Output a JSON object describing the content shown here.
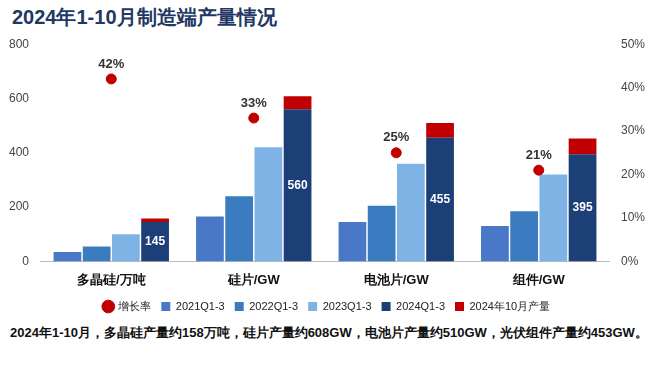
{
  "chart_data": {
    "type": "bar",
    "title": "2024年1-10月制造端产量情况",
    "categories": [
      "多晶硅/万吨",
      "硅片/GW",
      "电池片/GW",
      "组件/GW"
    ],
    "ylim": [
      0,
      800
    ],
    "yticks": [
      0,
      200,
      400,
      600,
      800
    ],
    "y2lim": [
      0,
      50
    ],
    "y2ticks": [
      {
        "value": 0,
        "label": "0%"
      },
      {
        "value": 10,
        "label": "10%"
      },
      {
        "value": 20,
        "label": "20%"
      },
      {
        "value": 30,
        "label": "30%"
      },
      {
        "value": 40,
        "label": "40%"
      },
      {
        "value": 50,
        "label": "50%"
      }
    ],
    "grid": false,
    "legend": "bottom",
    "series": [
      {
        "name": "2021Q1-3",
        "color": "#4a78c8",
        "values": [
          35,
          165,
          145,
          130
        ]
      },
      {
        "name": "2022Q1-3",
        "color": "#3a7cbf",
        "values": [
          55,
          240,
          205,
          185
        ]
      },
      {
        "name": "2023Q1-3",
        "color": "#7fb3e6",
        "values": [
          100,
          420,
          360,
          320
        ]
      },
      {
        "name": "2024Q1-3",
        "color": "#1d3f77",
        "values": [
          145,
          560,
          455,
          395
        ],
        "data_labels": true
      },
      {
        "name": "2024年10月产量",
        "color": "#c00000",
        "values": [
          13,
          48,
          55,
          58
        ],
        "stacked": true
      },
      {
        "name": "增长率",
        "type": "line",
        "marker": "circle",
        "line_style": "none",
        "axis": "y2",
        "color": "#c00000",
        "values": [
          42,
          33,
          25,
          21
        ],
        "value_labels": [
          "42%",
          "33%",
          "25%",
          "21%"
        ],
        "data_labels": true
      }
    ],
    "annotations": [
      "2024年1-10月，多晶硅产量约158万吨，硅片产量约608GW，电池片产量约510GW，光伏组件产量约453GW。"
    ]
  }
}
